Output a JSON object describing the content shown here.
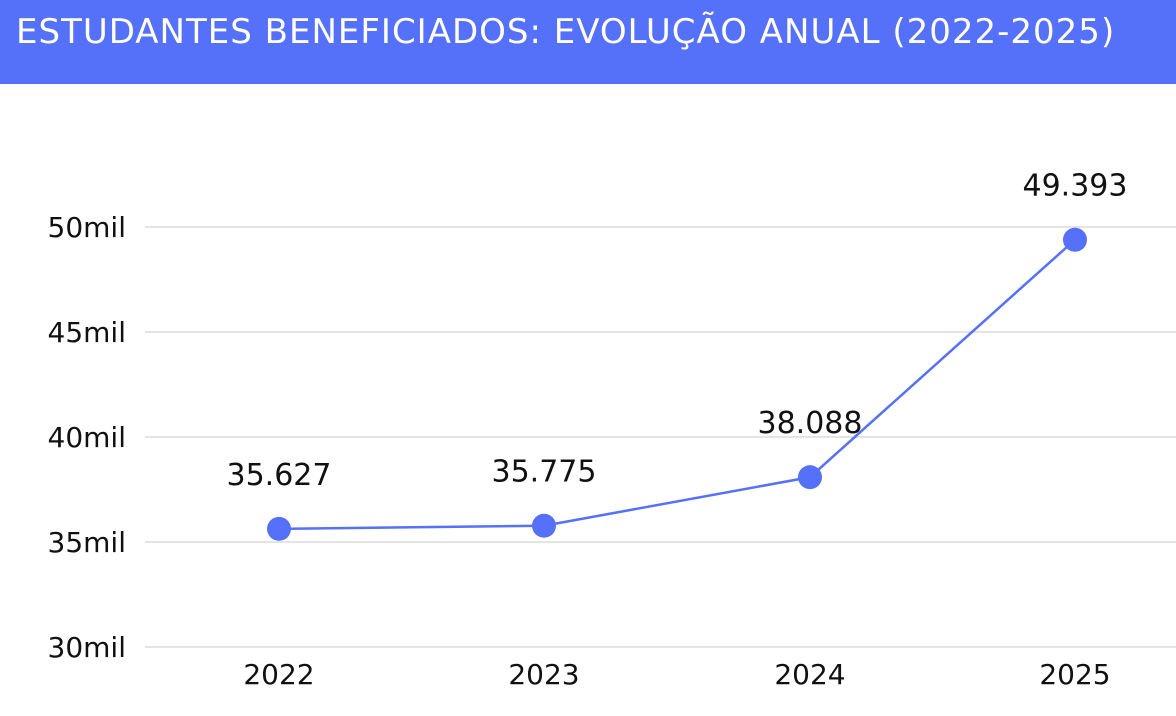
{
  "header": {
    "title": "ESTUDANTES BENEFICIADOS: EVOLUÇÃO ANUAL (2022-2025)"
  },
  "colors": {
    "accent": "#5570f9",
    "gridline": "#c8c8c8",
    "text": "#111111"
  },
  "chart_data": {
    "type": "line",
    "title": "ESTUDANTES BENEFICIADOS: EVOLUÇÃO ANUAL (2022-2025)",
    "xlabel": "",
    "ylabel": "",
    "categories": [
      "2022",
      "2023",
      "2024",
      "2025"
    ],
    "series": [
      {
        "name": "Estudantes beneficiados",
        "values": [
          35627,
          35775,
          38088,
          49393
        ],
        "data_labels": [
          "35.627",
          "35.775",
          "38.088",
          "49.393"
        ]
      }
    ],
    "ylim": [
      30000,
      50000
    ],
    "yticks": [
      30000,
      35000,
      40000,
      45000,
      50000
    ],
    "ytick_labels": [
      "30mil",
      "35mil",
      "40mil",
      "45mil",
      "50mil"
    ],
    "grid": true,
    "legend": "none"
  }
}
